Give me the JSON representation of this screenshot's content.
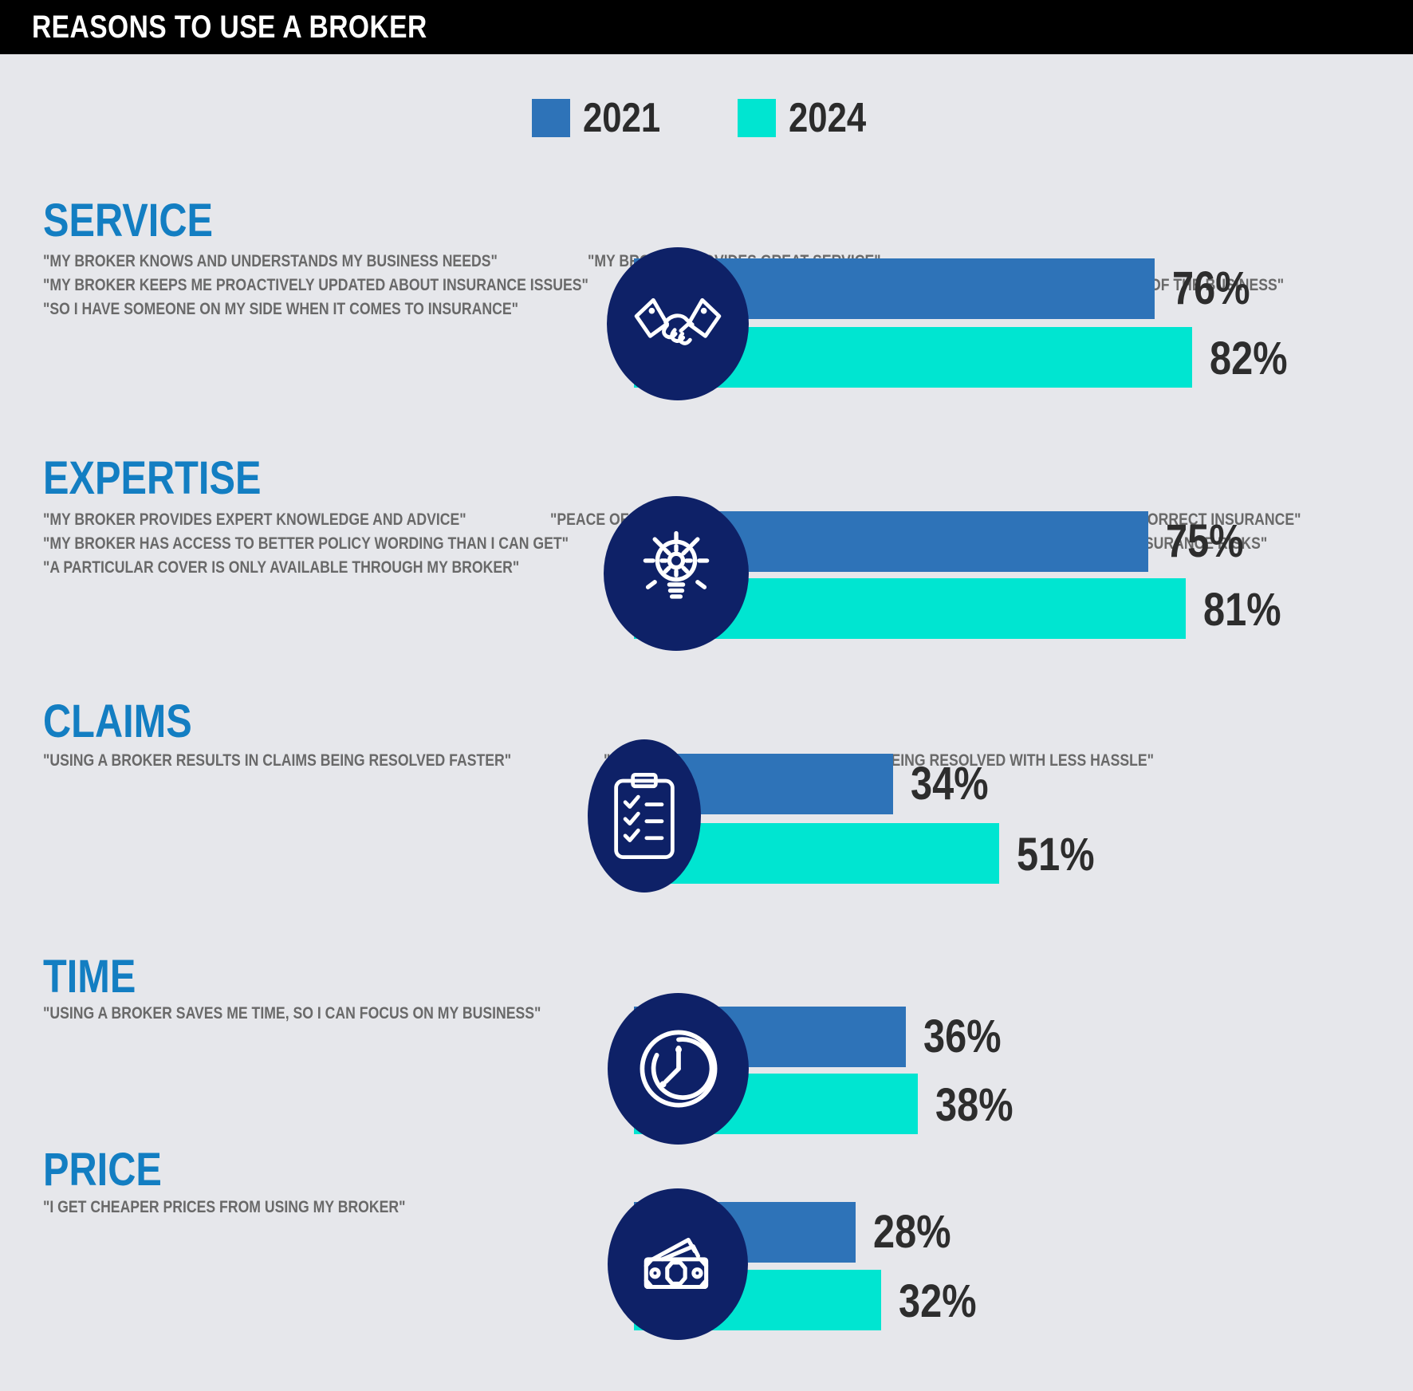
{
  "header": {
    "title": "REASONS TO USE A BROKER"
  },
  "legend": [
    {
      "label": "2021",
      "color": "#2e73b8"
    },
    {
      "label": "2024",
      "color": "#00e5d1"
    }
  ],
  "colors": {
    "background": "#e6e7eb",
    "header_bar": "#000000",
    "section_title": "#137ec2",
    "quote_text": "#696969",
    "icon_circle": "#0e2167",
    "percent_text": "#2d2d2d",
    "bar_2021": "#2e73b8",
    "bar_2024": "#00e5d1"
  },
  "chart_data": {
    "type": "bar",
    "orientation": "horizontal",
    "title": "REASONS TO USE A BROKER",
    "categories": [
      "SERVICE",
      "EXPERTISE",
      "CLAIMS",
      "TIME",
      "PRICE"
    ],
    "series": [
      {
        "name": "2021",
        "values": [
          76,
          75,
          34,
          36,
          28
        ],
        "color": "#2e73b8"
      },
      {
        "name": "2024",
        "values": [
          82,
          81,
          51,
          38,
          32
        ],
        "color": "#00e5d1"
      }
    ],
    "value_unit": "%",
    "xlim": [
      0,
      100
    ],
    "grid": false,
    "legend_position": "top-center",
    "data_labels": "outside-end"
  },
  "sections": [
    {
      "title": "SERVICE",
      "icon": "handshake-icon",
      "quotes": [
        "\"MY BROKER KNOWS AND UNDERSTANDS MY BUSINESS NEEDS\"",
        "\"MY BROKER PROVIDES GREAT SERVICE\"",
        "\"MY BROKER KEEPS ME PROACTIVELY UPDATED ABOUT INSURANCE ISSUES\"",
        "\"SERVICE THAT IS PERSONALISED TO MY NEED AND THE NEEDS OF THE BUSINESS\"",
        "\"SO I HAVE SOMEONE ON MY SIDE WHEN IT COMES TO INSURANCE\""
      ],
      "bars": [
        {
          "year": "2021",
          "value": 76,
          "label": "76%"
        },
        {
          "year": "2024",
          "value": 82,
          "label": "82%"
        }
      ]
    },
    {
      "title": "EXPERTISE",
      "icon": "lightbulb-gear-icon",
      "quotes": [
        "\"MY BROKER PROVIDES EXPERT KNOWLEDGE AND ADVICE\"",
        "\"PEACE OF MIND KNOWING THAT MY BROKER PROVIDES ME WITH",
        "THE CORRECT INSURANCE\"",
        "\"MY BROKER HAS ACCESS TO BETTER POLICY WORDING THAN I CAN GET\"",
        "\"MY BROKER HELPS ME COVER FOR HARD TO INSURE/COMPLEX INSURANCE RISKS\"",
        "\"A PARTICULAR COVER IS ONLY AVAILABLE THROUGH MY BROKER\""
      ],
      "bars": [
        {
          "year": "2021",
          "value": 75,
          "label": "75%"
        },
        {
          "year": "2024",
          "value": 81,
          "label": "81%"
        }
      ]
    },
    {
      "title": "CLAIMS",
      "icon": "clipboard-checklist-icon",
      "quotes": [
        "\"USING A BROKER RESULTS IN CLAIMS BEING RESOLVED FASTER\"",
        "\"USING A BROKER RESULTS IN CLAIMS BEING RESOLVED WITH LESS HASSLE\""
      ],
      "bars": [
        {
          "year": "2021",
          "value": 34,
          "label": "34%"
        },
        {
          "year": "2024",
          "value": 51,
          "label": "51%"
        }
      ]
    },
    {
      "title": "TIME",
      "icon": "clock-icon",
      "quotes": [
        "\"USING A BROKER SAVES ME TIME, SO I CAN FOCUS ON MY BUSINESS\""
      ],
      "bars": [
        {
          "year": "2021",
          "value": 36,
          "label": "36%"
        },
        {
          "year": "2024",
          "value": 38,
          "label": "38%"
        }
      ]
    },
    {
      "title": "PRICE",
      "icon": "banknotes-icon",
      "quotes": [
        "\"I GET CHEAPER PRICES FROM USING MY BROKER\""
      ],
      "bars": [
        {
          "year": "2021",
          "value": 28,
          "label": "28%"
        },
        {
          "year": "2024",
          "value": 32,
          "label": "32%"
        }
      ]
    }
  ]
}
